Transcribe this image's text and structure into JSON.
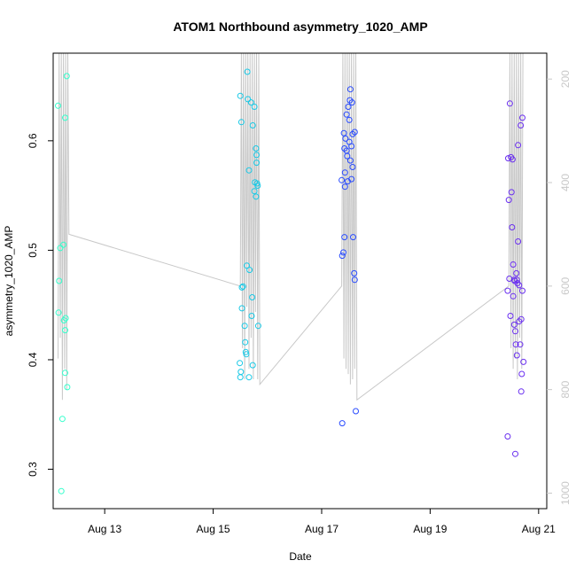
{
  "chart_data": {
    "type": "scatter",
    "title": "ATOM1 Northbound asymmetry_1020_AMP",
    "xlabel": "Date",
    "ylabel": "asymmetry_1020_AMP",
    "x_tick_labels": [
      "Aug 13",
      "Aug 15",
      "Aug 17",
      "Aug 19",
      "Aug 21"
    ],
    "x_tick_days": [
      13,
      15,
      17,
      19,
      21
    ],
    "xlim_days": [
      12.05,
      21.15
    ],
    "ylim": [
      0.264,
      0.68
    ],
    "y_ticks": [
      0.3,
      0.4,
      0.5,
      0.6
    ],
    "y2_ticks": [
      200,
      400,
      600,
      800,
      1000
    ],
    "y2lim": [
      1030,
      150
    ],
    "grid": false,
    "point_groups": [
      {
        "color": "#33ffcc",
        "points": [
          [
            12.14,
            0.632
          ],
          [
            12.16,
            0.472
          ],
          [
            12.15,
            0.443
          ],
          [
            12.18,
            0.502
          ],
          [
            12.22,
            0.346
          ],
          [
            12.2,
            0.28
          ],
          [
            12.24,
            0.505
          ],
          [
            12.25,
            0.436
          ],
          [
            12.27,
            0.621
          ],
          [
            12.28,
            0.438
          ],
          [
            12.27,
            0.427
          ],
          [
            12.27,
            0.388
          ],
          [
            12.31,
            0.375
          ],
          [
            12.3,
            0.659
          ]
        ]
      },
      {
        "color": "#19c9e6",
        "points": [
          [
            15.5,
            0.641
          ],
          [
            15.52,
            0.617
          ],
          [
            15.55,
            0.467
          ],
          [
            15.53,
            0.466
          ],
          [
            15.53,
            0.447
          ],
          [
            15.49,
            0.397
          ],
          [
            15.51,
            0.389
          ],
          [
            15.5,
            0.384
          ],
          [
            15.58,
            0.431
          ],
          [
            15.59,
            0.416
          ],
          [
            15.6,
            0.407
          ],
          [
            15.61,
            0.405
          ],
          [
            15.62,
            0.486
          ],
          [
            15.63,
            0.663
          ],
          [
            15.64,
            0.638
          ],
          [
            15.66,
            0.573
          ],
          [
            15.67,
            0.482
          ],
          [
            15.66,
            0.384
          ],
          [
            15.7,
            0.635
          ],
          [
            15.72,
            0.457
          ],
          [
            15.71,
            0.44
          ],
          [
            15.73,
            0.395
          ],
          [
            15.73,
            0.614
          ],
          [
            15.76,
            0.631
          ],
          [
            15.77,
            0.562
          ],
          [
            15.76,
            0.554
          ],
          [
            15.79,
            0.593
          ],
          [
            15.8,
            0.587
          ],
          [
            15.8,
            0.58
          ],
          [
            15.79,
            0.549
          ],
          [
            15.81,
            0.561
          ],
          [
            15.82,
            0.559
          ],
          [
            15.83,
            0.431
          ]
        ]
      },
      {
        "color": "#2a4cff",
        "points": [
          [
            17.37,
            0.564
          ],
          [
            17.38,
            0.495
          ],
          [
            17.4,
            0.498
          ],
          [
            17.38,
            0.342
          ],
          [
            17.41,
            0.607
          ],
          [
            17.42,
            0.593
          ],
          [
            17.43,
            0.571
          ],
          [
            17.43,
            0.558
          ],
          [
            17.42,
            0.512
          ],
          [
            17.44,
            0.602
          ],
          [
            17.46,
            0.624
          ],
          [
            17.46,
            0.591
          ],
          [
            17.47,
            0.586
          ],
          [
            17.48,
            0.563
          ],
          [
            17.49,
            0.631
          ],
          [
            17.51,
            0.619
          ],
          [
            17.51,
            0.599
          ],
          [
            17.52,
            0.637
          ],
          [
            17.53,
            0.647
          ],
          [
            17.53,
            0.582
          ],
          [
            17.55,
            0.595
          ],
          [
            17.55,
            0.565
          ],
          [
            17.57,
            0.606
          ],
          [
            17.57,
            0.576
          ],
          [
            17.58,
            0.512
          ],
          [
            17.6,
            0.479
          ],
          [
            17.61,
            0.473
          ],
          [
            17.61,
            0.608
          ],
          [
            17.63,
            0.353
          ],
          [
            17.56,
            0.635
          ]
        ]
      },
      {
        "color": "#6a2ff0",
        "points": [
          [
            20.43,
            0.463
          ],
          [
            20.44,
            0.584
          ],
          [
            20.45,
            0.546
          ],
          [
            20.46,
            0.474
          ],
          [
            20.47,
            0.634
          ],
          [
            20.48,
            0.44
          ],
          [
            20.49,
            0.585
          ],
          [
            20.5,
            0.553
          ],
          [
            20.51,
            0.521
          ],
          [
            20.52,
            0.583
          ],
          [
            20.53,
            0.487
          ],
          [
            20.53,
            0.458
          ],
          [
            20.55,
            0.473
          ],
          [
            20.55,
            0.432
          ],
          [
            20.56,
            0.472
          ],
          [
            20.57,
            0.426
          ],
          [
            20.58,
            0.414
          ],
          [
            20.59,
            0.479
          ],
          [
            20.6,
            0.473
          ],
          [
            20.6,
            0.404
          ],
          [
            20.61,
            0.47
          ],
          [
            20.62,
            0.596
          ],
          [
            20.62,
            0.508
          ],
          [
            20.64,
            0.468
          ],
          [
            20.64,
            0.435
          ],
          [
            20.66,
            0.414
          ],
          [
            20.67,
            0.614
          ],
          [
            20.68,
            0.371
          ],
          [
            20.68,
            0.437
          ],
          [
            20.7,
            0.621
          ],
          [
            20.7,
            0.463
          ],
          [
            20.72,
            0.398
          ],
          [
            20.57,
            0.314
          ],
          [
            20.43,
            0.33
          ],
          [
            20.69,
            0.387
          ]
        ]
      }
    ],
    "line_series": {
      "color": "#c8c8c8",
      "note": "secondary-axis trace",
      "points": [
        [
          12.14,
          740
        ],
        [
          12.16,
          110
        ],
        [
          12.18,
          700
        ],
        [
          12.2,
          110
        ],
        [
          12.22,
          820
        ],
        [
          12.24,
          110
        ],
        [
          12.26,
          760
        ],
        [
          12.28,
          110
        ],
        [
          12.3,
          800
        ],
        [
          12.32,
          110
        ],
        [
          12.34,
          500
        ],
        [
          15.5,
          600
        ],
        [
          15.52,
          110
        ],
        [
          15.54,
          720
        ],
        [
          15.56,
          110
        ],
        [
          15.58,
          780
        ],
        [
          15.6,
          110
        ],
        [
          15.62,
          640
        ],
        [
          15.64,
          110
        ],
        [
          15.66,
          760
        ],
        [
          15.68,
          110
        ],
        [
          15.7,
          700
        ],
        [
          15.72,
          110
        ],
        [
          15.74,
          780
        ],
        [
          15.76,
          110
        ],
        [
          15.78,
          650
        ],
        [
          15.8,
          110
        ],
        [
          15.82,
          780
        ],
        [
          15.84,
          110
        ],
        [
          15.86,
          790
        ],
        [
          17.37,
          600
        ],
        [
          17.39,
          110
        ],
        [
          17.41,
          740
        ],
        [
          17.43,
          110
        ],
        [
          17.45,
          760
        ],
        [
          17.47,
          110
        ],
        [
          17.49,
          770
        ],
        [
          17.51,
          110
        ],
        [
          17.53,
          790
        ],
        [
          17.55,
          110
        ],
        [
          17.57,
          780
        ],
        [
          17.59,
          110
        ],
        [
          17.61,
          760
        ],
        [
          17.63,
          110
        ],
        [
          17.65,
          820
        ],
        [
          20.45,
          600
        ],
        [
          20.47,
          110
        ],
        [
          20.49,
          720
        ],
        [
          20.51,
          110
        ],
        [
          20.53,
          760
        ],
        [
          20.55,
          110
        ],
        [
          20.57,
          740
        ],
        [
          20.59,
          110
        ],
        [
          20.61,
          780
        ],
        [
          20.63,
          110
        ],
        [
          20.65,
          700
        ],
        [
          20.67,
          110
        ],
        [
          20.69,
          760
        ],
        [
          20.71,
          110
        ]
      ]
    }
  }
}
